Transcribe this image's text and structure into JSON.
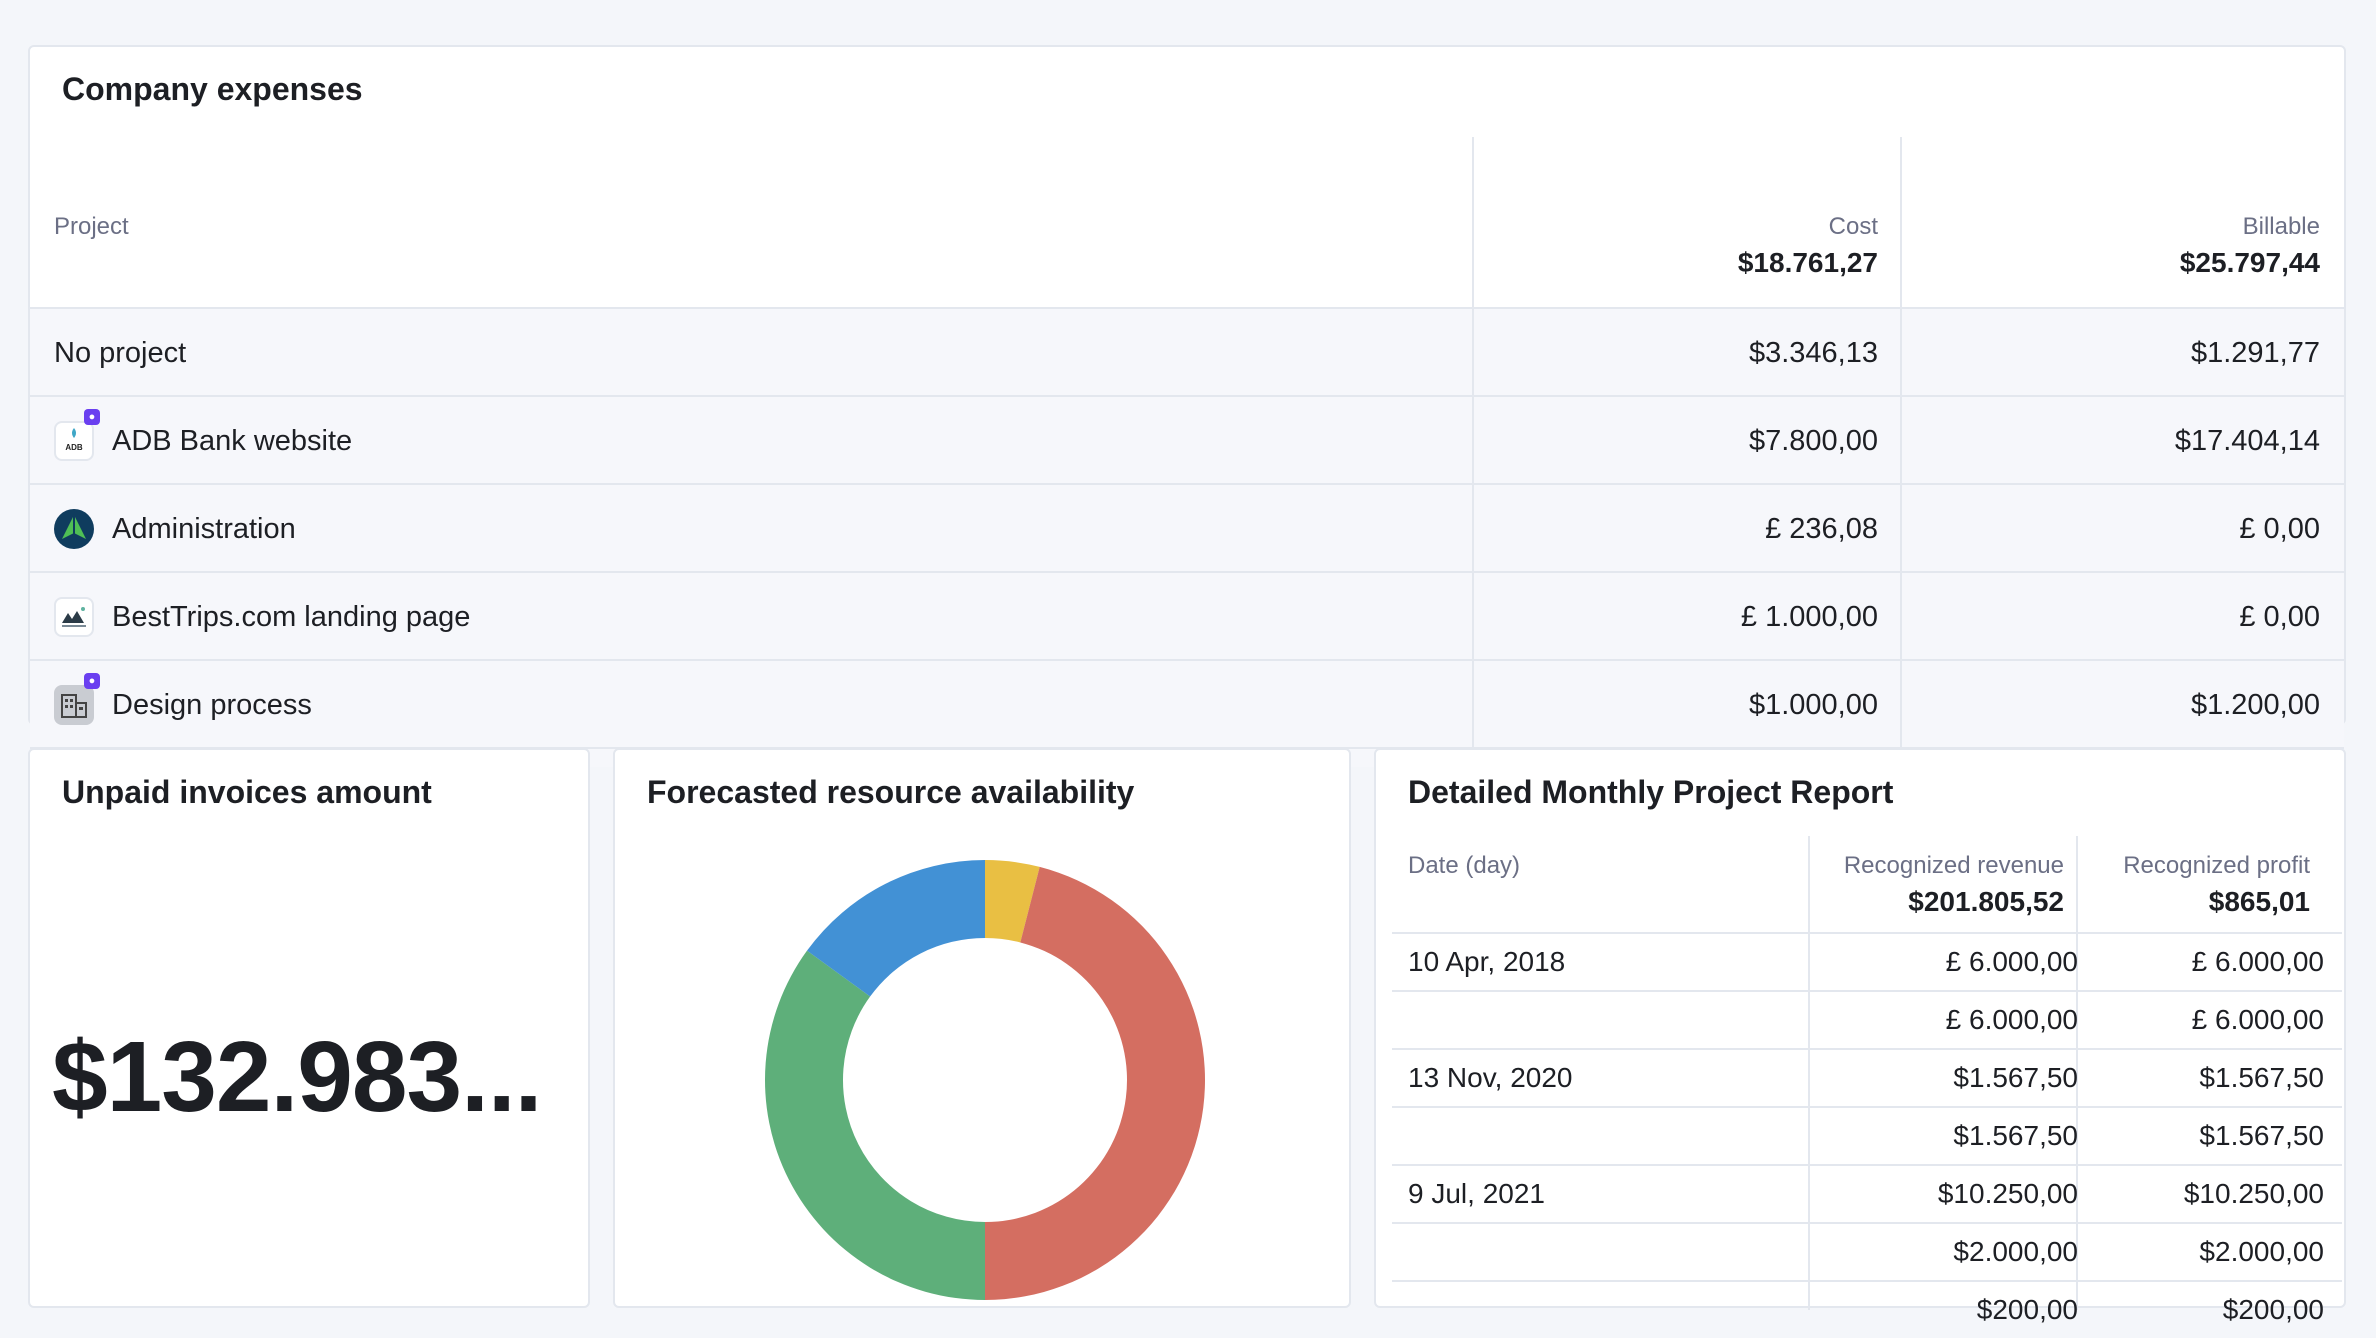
{
  "expenses": {
    "title": "Company expenses",
    "columns": {
      "project": "Project",
      "cost": "Cost",
      "cost_total": "$18.761,27",
      "billable": "Billable",
      "billable_total": "$25.797,44"
    },
    "rows": [
      {
        "project": "No project",
        "cost": "$3.346,13",
        "billable": "$1.291,77",
        "icon": "",
        "locked": false
      },
      {
        "project": "ADB Bank website",
        "cost": "$7.800,00",
        "billable": "$17.404,14",
        "icon": "adb-logo-icon",
        "locked": true
      },
      {
        "project": "Administration",
        "cost": "£ 236,08",
        "billable": "£ 0,00",
        "icon": "tree-logo-icon",
        "locked": false
      },
      {
        "project": "BestTrips.com landing page",
        "cost": "£ 1.000,00",
        "billable": "£ 0,00",
        "icon": "besttrips-logo-icon",
        "locked": false
      },
      {
        "project": "Design process",
        "cost": "$1.000,00",
        "billable": "$1.200,00",
        "icon": "building-icon",
        "locked": true
      }
    ]
  },
  "unpaid": {
    "title": "Unpaid invoices amount",
    "amount": "$132.983..."
  },
  "forecast": {
    "title": "Forecasted resource availability",
    "chart_data": {
      "type": "pie",
      "donut": true,
      "slices": [
        {
          "value": 4,
          "color": "#e9bf43"
        },
        {
          "value": 46,
          "color": "#d46e61"
        },
        {
          "value": 35,
          "color": "#5eaf7a"
        },
        {
          "value": 15,
          "color": "#4291d5"
        }
      ]
    }
  },
  "report": {
    "title": "Detailed Monthly Project Report",
    "columns": {
      "date": "Date (day)",
      "revenue": "Recognized revenue",
      "revenue_total": "$201.805,52",
      "profit": "Recognized profit",
      "profit_total": "$865,01"
    },
    "rows": [
      {
        "date": "10 Apr, 2018",
        "revenue": "£ 6.000,00",
        "profit": "£ 6.000,00"
      },
      {
        "date": "",
        "revenue": "£ 6.000,00",
        "profit": "£ 6.000,00"
      },
      {
        "date": "13 Nov, 2020",
        "revenue": "$1.567,50",
        "profit": "$1.567,50"
      },
      {
        "date": "",
        "revenue": "$1.567,50",
        "profit": "$1.567,50"
      },
      {
        "date": "9 Jul, 2021",
        "revenue": "$10.250,00",
        "profit": "$10.250,00"
      },
      {
        "date": "",
        "revenue": "$2.000,00",
        "profit": "$2.000,00"
      },
      {
        "date": "",
        "revenue": "$200,00",
        "profit": "$200,00"
      }
    ]
  }
}
